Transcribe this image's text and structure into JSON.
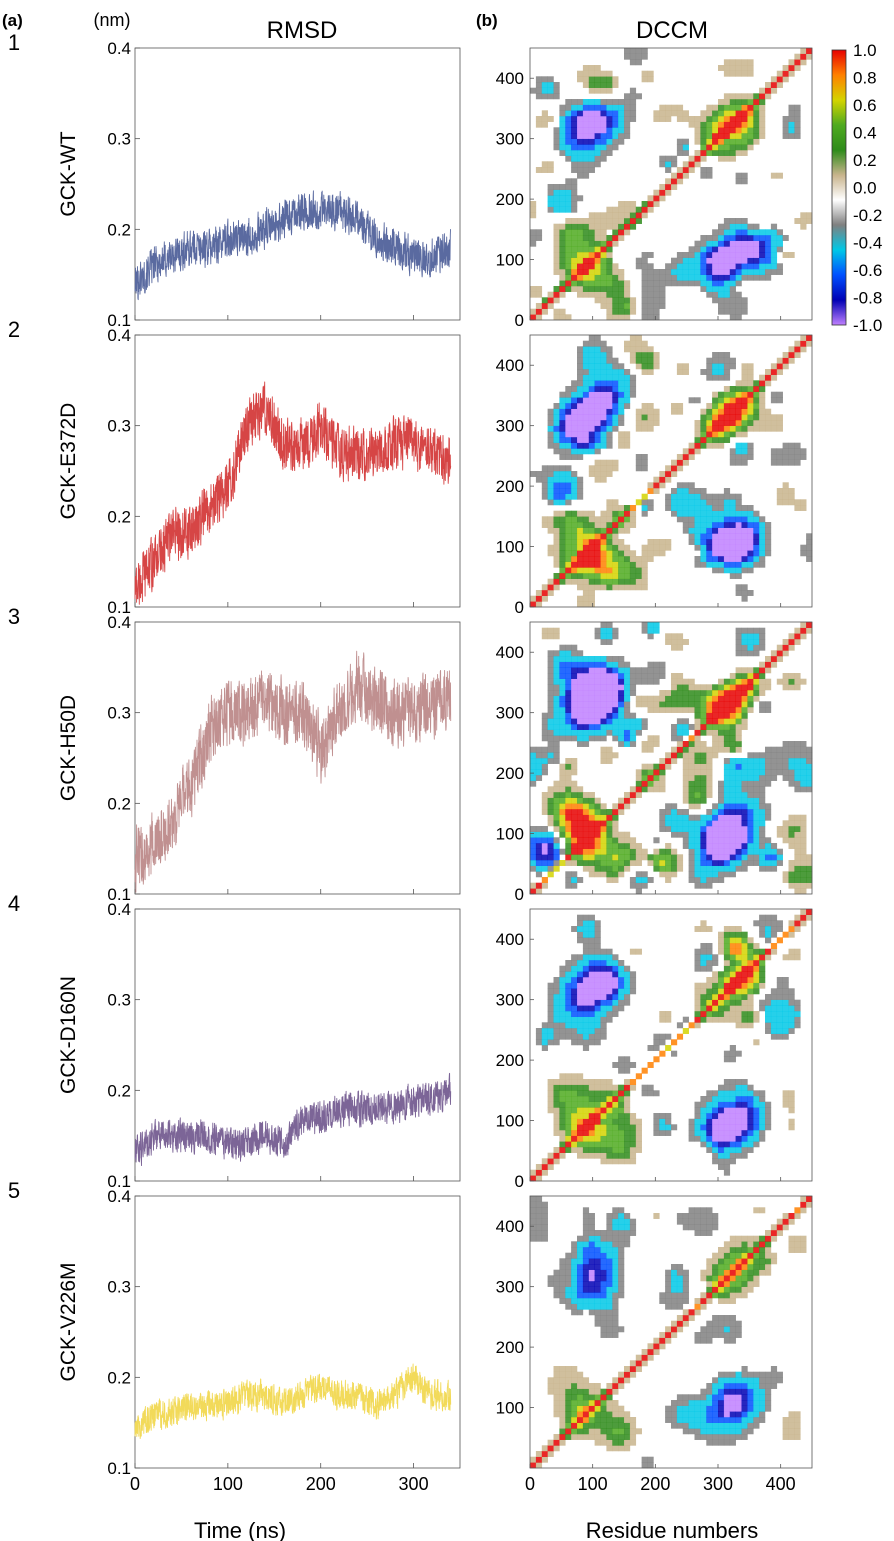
{
  "figure": {
    "panel_a_label": "(a)",
    "panel_b_label": "(b)",
    "rmsd_header": "RMSD",
    "dccm_header": "DCCM",
    "y_unit": "(nm)",
    "rmsd_xlabel": "Time (ns)",
    "dccm_xlabel": "Residue numbers"
  },
  "rows": [
    {
      "index": "1",
      "name": "GCK-WT",
      "color": "#5a6aa0"
    },
    {
      "index": "2",
      "name": "GCK-E372D",
      "color": "#d64545"
    },
    {
      "index": "3",
      "name": "GCK-H50D",
      "color": "#c09090"
    },
    {
      "index": "4",
      "name": "GCK-D160N",
      "color": "#7c6597"
    },
    {
      "index": "5",
      "name": "GCK-V226M",
      "color": "#f2da5a"
    }
  ],
  "colorbar": {
    "labels": [
      "1.0",
      "0.8",
      "0.6",
      "0.4",
      "0.2",
      "0.0",
      "-0.2",
      "-0.4",
      "-0.6",
      "-0.8",
      "-1.0"
    ],
    "colors": [
      "#e60000",
      "#ff8000",
      "#d4d400",
      "#4faa20",
      "#2e8b1a",
      "#c8b48c",
      "#ffffff",
      "#808080",
      "#00c8e6",
      "#0050ff",
      "#0000b4",
      "#c080ff"
    ]
  },
  "chart_data": [
    {
      "type": "line",
      "title": "RMSD",
      "xlabel": "Time (ns)",
      "ylabel": "(nm)",
      "xlim": [
        0,
        350
      ],
      "ylim": [
        0.1,
        0.4
      ],
      "x_ticks": [
        "0",
        "100",
        "200",
        "300"
      ],
      "y_ticks": [
        "0.1",
        "0.2",
        "0.3",
        "0.4"
      ],
      "x": [
        0,
        20,
        40,
        60,
        80,
        100,
        120,
        140,
        160,
        180,
        200,
        220,
        240,
        260,
        280,
        300,
        320,
        340
      ],
      "series": [
        {
          "name": "GCK-WT",
          "values": [
            0.14,
            0.16,
            0.17,
            0.18,
            0.18,
            0.19,
            0.19,
            0.2,
            0.21,
            0.22,
            0.22,
            0.22,
            0.21,
            0.19,
            0.18,
            0.17,
            0.17,
            0.18
          ]
        },
        {
          "name": "GCK-E372D",
          "values": [
            0.12,
            0.15,
            0.18,
            0.18,
            0.21,
            0.23,
            0.3,
            0.32,
            0.28,
            0.28,
            0.3,
            0.27,
            0.27,
            0.27,
            0.28,
            0.28,
            0.27,
            0.26
          ]
        },
        {
          "name": "GCK-H50D",
          "values": [
            0.14,
            0.15,
            0.18,
            0.22,
            0.28,
            0.3,
            0.3,
            0.31,
            0.3,
            0.3,
            0.26,
            0.3,
            0.33,
            0.31,
            0.3,
            0.3,
            0.31,
            0.32
          ]
        },
        {
          "name": "GCK-D160N",
          "values": [
            0.13,
            0.15,
            0.15,
            0.15,
            0.15,
            0.14,
            0.14,
            0.15,
            0.14,
            0.17,
            0.17,
            0.18,
            0.18,
            0.18,
            0.18,
            0.19,
            0.19,
            0.2
          ]
        },
        {
          "name": "GCK-V226M",
          "values": [
            0.14,
            0.16,
            0.16,
            0.17,
            0.17,
            0.17,
            0.18,
            0.18,
            0.17,
            0.18,
            0.19,
            0.18,
            0.18,
            0.17,
            0.18,
            0.2,
            0.18,
            0.18
          ]
        }
      ]
    },
    {
      "type": "heatmap",
      "title": "DCCM",
      "xlabel": "Residue numbers",
      "xlim": [
        0,
        450
      ],
      "ylim": [
        0,
        450
      ],
      "x_ticks": [
        "0",
        "100",
        "200",
        "300",
        "400"
      ],
      "y_ticks": [
        "0",
        "100",
        "200",
        "300",
        "400"
      ],
      "value_range": [
        -1.0,
        1.0
      ],
      "matrices": [
        "GCK-WT",
        "GCK-E372D",
        "GCK-H50D",
        "GCK-D160N",
        "GCK-V226M"
      ]
    }
  ]
}
